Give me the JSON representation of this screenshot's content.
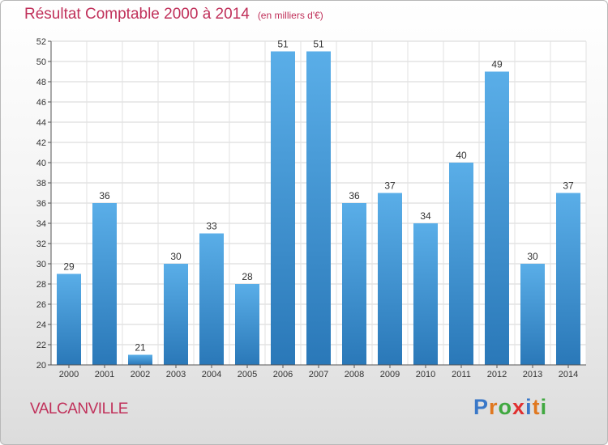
{
  "chart_data": {
    "type": "bar",
    "title": "Résultat Comptable 2000 à 2014",
    "subtitle": "(en milliers d'€)",
    "categories": [
      "2000",
      "2001",
      "2002",
      "2003",
      "2004",
      "2005",
      "2006",
      "2007",
      "2008",
      "2009",
      "2010",
      "2011",
      "2012",
      "2013",
      "2014"
    ],
    "values": [
      29,
      36,
      21,
      30,
      33,
      28,
      51,
      51,
      36,
      37,
      34,
      40,
      49,
      30,
      37
    ],
    "ylim": [
      20,
      52
    ],
    "yticks": [
      20,
      22,
      24,
      26,
      28,
      30,
      32,
      34,
      36,
      38,
      40,
      42,
      44,
      46,
      48,
      50,
      52
    ],
    "grid": true,
    "bar_color_top": "#5aaee8",
    "bar_color_bottom": "#2a78b8"
  },
  "footer": {
    "commune": "VALCANVILLE",
    "logo_letters": [
      "P",
      "r",
      "o",
      "x",
      "i",
      "t",
      "i"
    ],
    "logo_colors": [
      "#3a78c8",
      "#e07820",
      "#40a840",
      "#e03030",
      "#3a78c8",
      "#e07820",
      "#40a840"
    ]
  }
}
